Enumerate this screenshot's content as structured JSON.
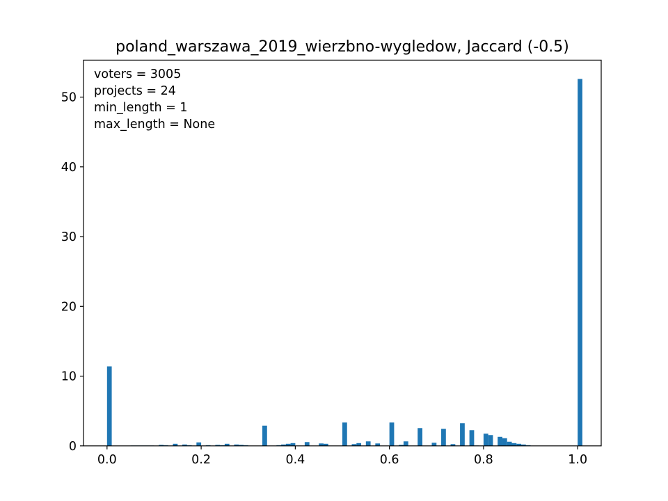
{
  "chart_data": {
    "type": "bar",
    "title": "poland_warszawa_2019_wierzbno-wygledow, Jaccard (-0.5)",
    "xlabel": "",
    "ylabel": "",
    "xlim": [
      -0.05,
      1.05
    ],
    "ylim": [
      0,
      55.3
    ],
    "bar_width": 0.01,
    "color": "#1f77b4",
    "grid": false,
    "x_ticks": [
      {
        "value": 0.0,
        "label": "0.0"
      },
      {
        "value": 0.2,
        "label": "0.2"
      },
      {
        "value": 0.4,
        "label": "0.4"
      },
      {
        "value": 0.6,
        "label": "0.6"
      },
      {
        "value": 0.8,
        "label": "0.8"
      },
      {
        "value": 1.0,
        "label": "1.0"
      }
    ],
    "y_ticks": [
      {
        "value": 0,
        "label": "0"
      },
      {
        "value": 10,
        "label": "10"
      },
      {
        "value": 20,
        "label": "20"
      },
      {
        "value": 30,
        "label": "30"
      },
      {
        "value": 40,
        "label": "40"
      },
      {
        "value": 50,
        "label": "50"
      }
    ],
    "annotations": [
      "voters = 3005",
      "projects = 24",
      "min_length = 1",
      "max_length = None"
    ],
    "x": [
      0.005,
      0.055,
      0.065,
      0.075,
      0.085,
      0.095,
      0.115,
      0.125,
      0.145,
      0.165,
      0.175,
      0.195,
      0.215,
      0.235,
      0.245,
      0.255,
      0.275,
      0.285,
      0.295,
      0.335,
      0.365,
      0.375,
      0.385,
      0.395,
      0.425,
      0.455,
      0.465,
      0.505,
      0.525,
      0.535,
      0.555,
      0.575,
      0.605,
      0.625,
      0.635,
      0.665,
      0.695,
      0.715,
      0.735,
      0.755,
      0.775,
      0.785,
      0.805,
      0.815,
      0.835,
      0.845,
      0.855,
      0.865,
      0.875,
      0.885,
      0.895,
      1.005
    ],
    "values": [
      11.4,
      0.05,
      0.05,
      0.05,
      0.05,
      0.05,
      0.15,
      0.1,
      0.3,
      0.2,
      0.1,
      0.5,
      0.1,
      0.15,
      0.1,
      0.3,
      0.2,
      0.15,
      0.1,
      2.9,
      0.1,
      0.2,
      0.3,
      0.4,
      0.55,
      0.35,
      0.3,
      3.35,
      0.25,
      0.4,
      0.65,
      0.35,
      3.35,
      0.15,
      0.65,
      2.55,
      0.45,
      2.45,
      0.25,
      3.25,
      2.25,
      0.05,
      1.75,
      1.55,
      1.3,
      1.1,
      0.6,
      0.4,
      0.3,
      0.2,
      0.1,
      52.6
    ]
  }
}
